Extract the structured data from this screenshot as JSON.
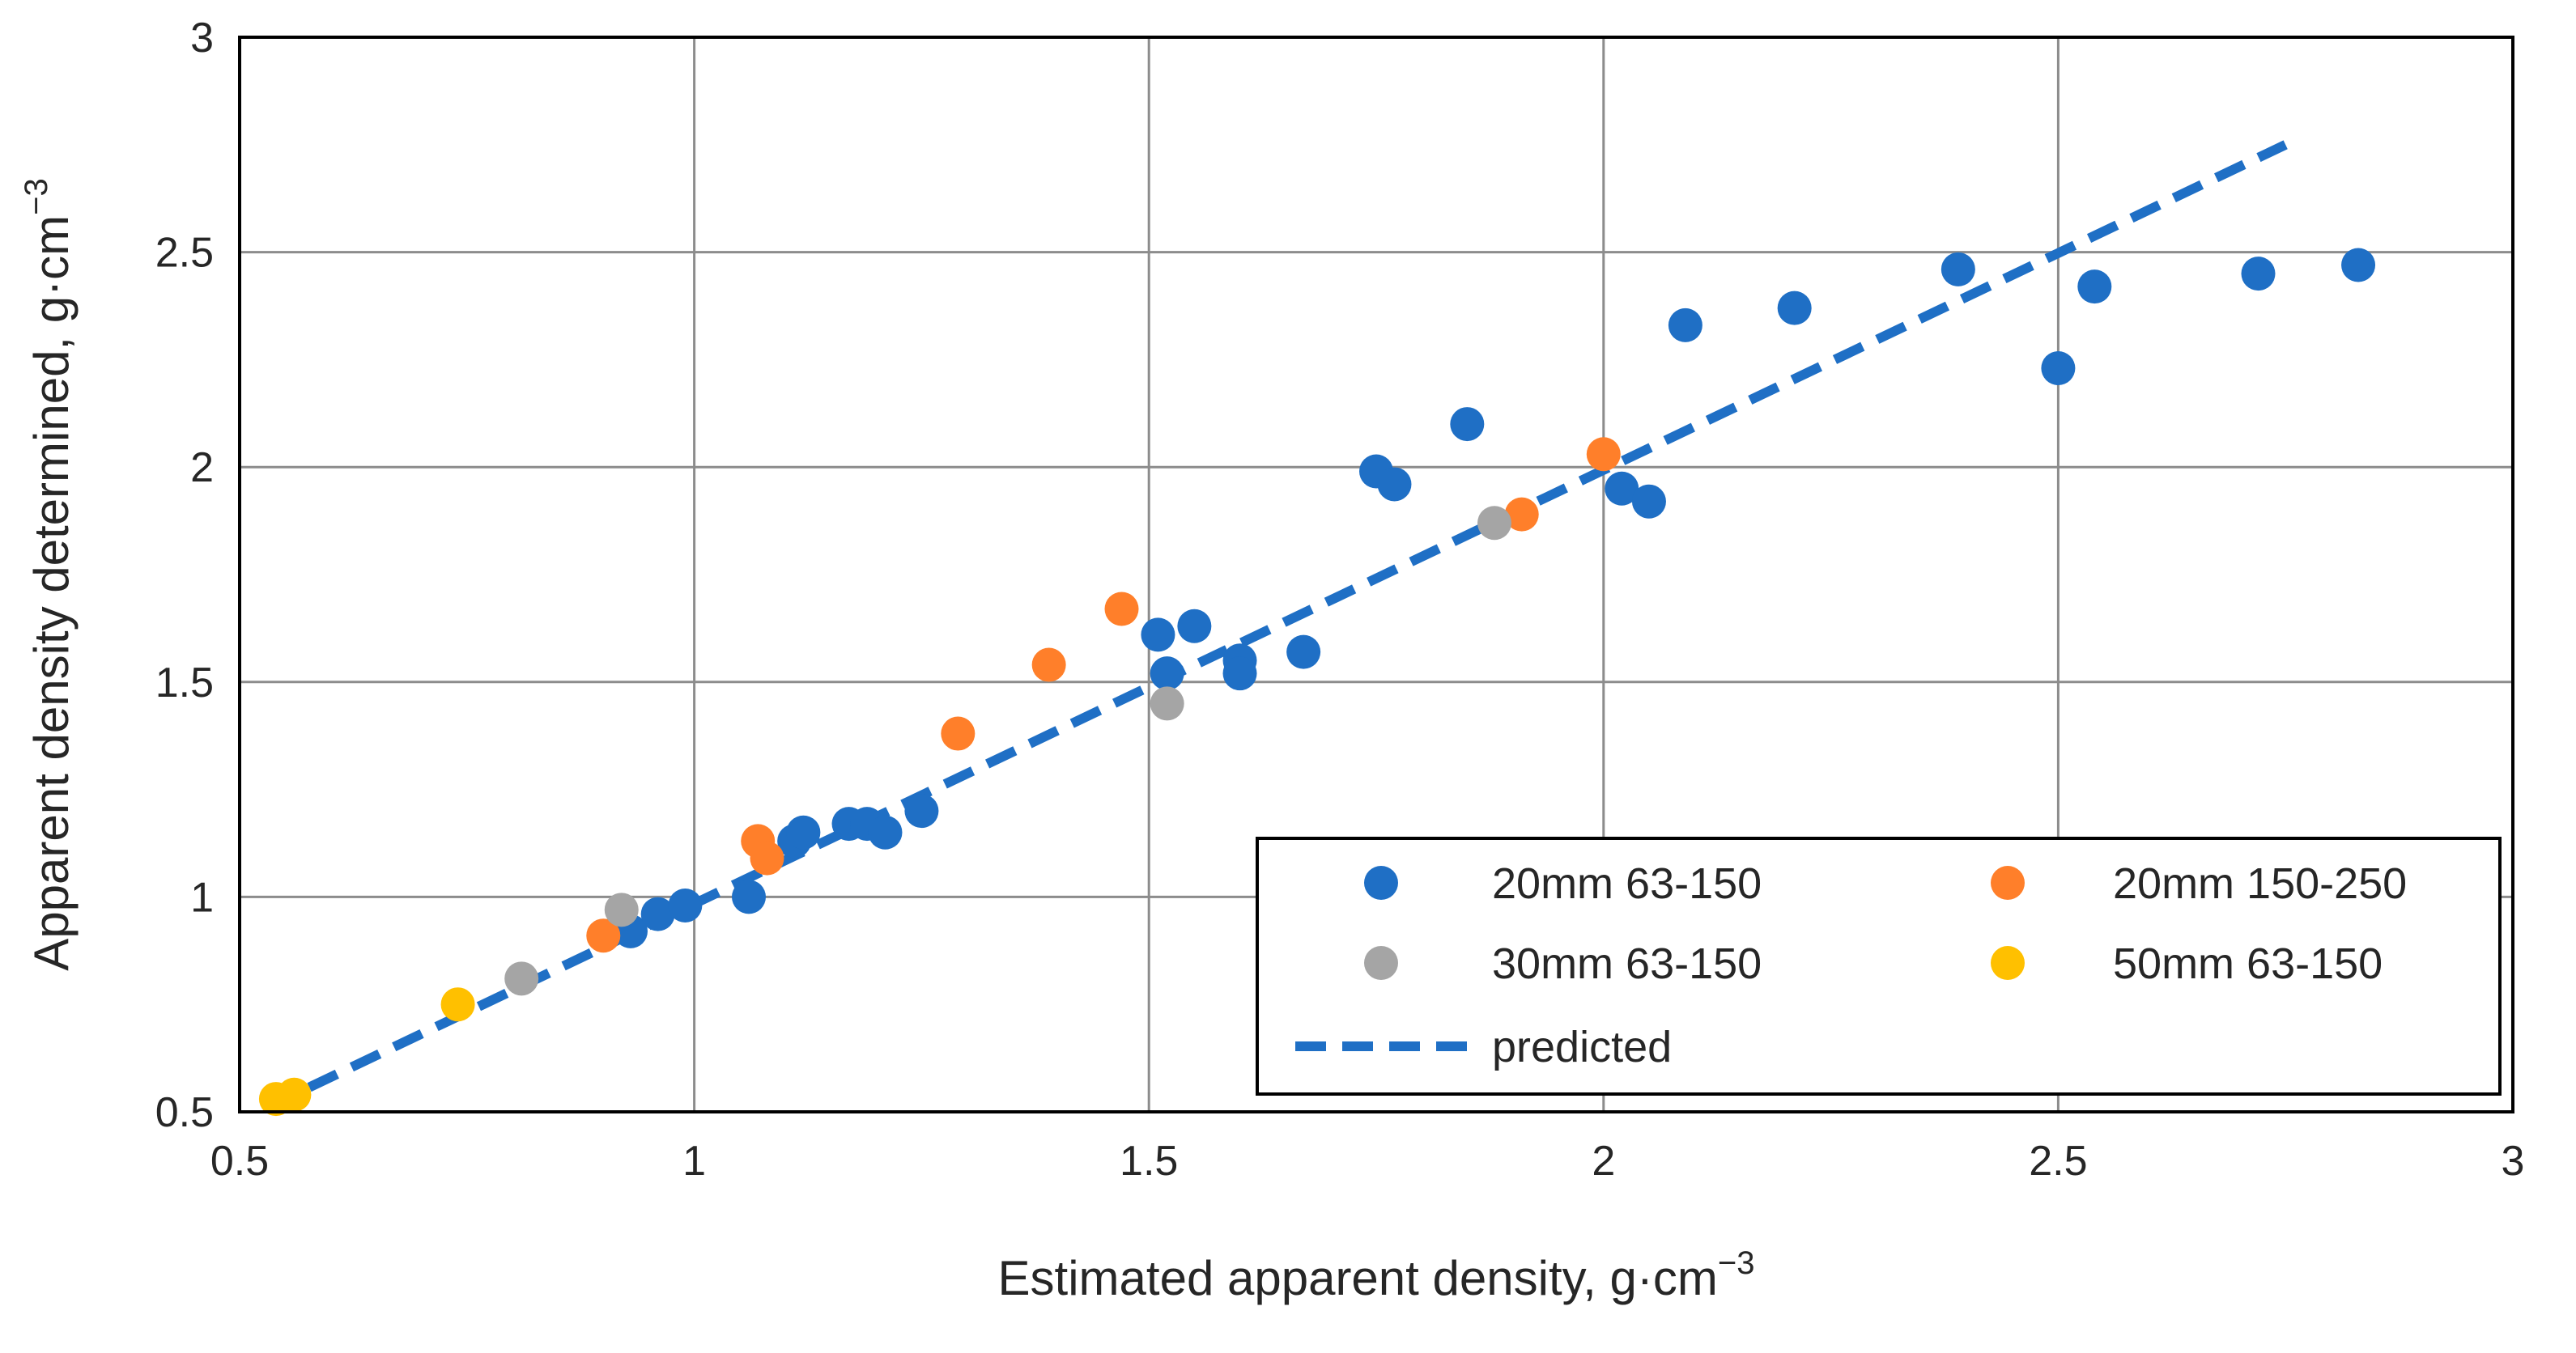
{
  "chart_data": {
    "type": "scatter",
    "title": "",
    "xlabel": "Estimated apparent density, g·cm",
    "xlabel_sup": "−3",
    "ylabel": "Apparent density determined, g·cm",
    "ylabel_sup": "−3",
    "xlim": [
      0.5,
      3
    ],
    "ylim": [
      0.5,
      3
    ],
    "xticks": [
      "0.5",
      "1",
      "1.5",
      "2",
      "2.5",
      "3"
    ],
    "yticks": [
      "0.5",
      "1",
      "1.5",
      "2",
      "2.5",
      "3"
    ],
    "grid": true,
    "legend_position": "bottom-right",
    "series": [
      {
        "name": "20mm 63-150",
        "color": "#1f6fc5",
        "marker": "circle",
        "points": [
          [
            0.93,
            0.92
          ],
          [
            0.96,
            0.96
          ],
          [
            0.99,
            0.98
          ],
          [
            1.06,
            1.0
          ],
          [
            1.11,
            1.13
          ],
          [
            1.12,
            1.15
          ],
          [
            1.17,
            1.17
          ],
          [
            1.19,
            1.17
          ],
          [
            1.21,
            1.15
          ],
          [
            1.25,
            1.2
          ],
          [
            1.51,
            1.61
          ],
          [
            1.52,
            1.52
          ],
          [
            1.55,
            1.63
          ],
          [
            1.6,
            1.55
          ],
          [
            1.6,
            1.52
          ],
          [
            1.67,
            1.57
          ],
          [
            1.75,
            1.99
          ],
          [
            1.77,
            1.96
          ],
          [
            1.85,
            2.1
          ],
          [
            2.02,
            1.95
          ],
          [
            2.05,
            1.92
          ],
          [
            2.09,
            2.33
          ],
          [
            2.21,
            2.37
          ],
          [
            2.39,
            2.46
          ],
          [
            2.5,
            2.23
          ],
          [
            2.54,
            2.42
          ],
          [
            2.72,
            2.45
          ],
          [
            2.83,
            2.47
          ]
        ]
      },
      {
        "name": "20mm 150-250",
        "color": "#ff7f2a",
        "marker": "circle",
        "points": [
          [
            0.9,
            0.91
          ],
          [
            1.07,
            1.13
          ],
          [
            1.08,
            1.09
          ],
          [
            1.29,
            1.38
          ],
          [
            1.39,
            1.54
          ],
          [
            1.47,
            1.67
          ],
          [
            1.91,
            1.89
          ],
          [
            2.0,
            2.03
          ]
        ]
      },
      {
        "name": "30mm 63-150",
        "color": "#a5a5a5",
        "marker": "circle",
        "points": [
          [
            0.81,
            0.81
          ],
          [
            0.92,
            0.97
          ],
          [
            1.52,
            1.45
          ],
          [
            1.88,
            1.87
          ]
        ]
      },
      {
        "name": "50mm 63-150",
        "color": "#ffc000",
        "marker": "circle",
        "points": [
          [
            0.54,
            0.53
          ],
          [
            0.56,
            0.54
          ],
          [
            0.74,
            0.75
          ]
        ]
      }
    ],
    "lines": [
      {
        "name": "predicted",
        "color": "#1f6fc5",
        "style": "dashed",
        "points": [
          [
            0.53,
            0.51
          ],
          [
            2.75,
            2.75
          ]
        ]
      }
    ]
  }
}
